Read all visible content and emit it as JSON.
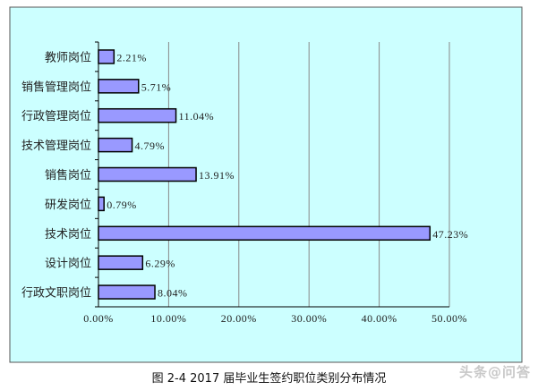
{
  "chart_data": {
    "type": "bar",
    "orientation": "horizontal",
    "categories": [
      "教师岗位",
      "销售管理岗位",
      "行政管理岗位",
      "技术管理岗位",
      "销售岗位",
      "研发岗位",
      "技术岗位",
      "设计岗位",
      "行政文职岗位"
    ],
    "values": [
      2.21,
      5.71,
      11.04,
      4.79,
      13.91,
      0.79,
      47.23,
      6.29,
      8.04
    ],
    "value_labels": [
      "2.21%",
      "5.71%",
      "11.04%",
      "4.79%",
      "13.91%",
      "0.79%",
      "47.23%",
      "6.29%",
      "8.04%"
    ],
    "xlim": [
      0,
      50
    ],
    "xticks": [
      0,
      10,
      20,
      30,
      40,
      50
    ],
    "xtick_labels": [
      "0.00%",
      "10.00%",
      "20.00%",
      "30.00%",
      "40.00%",
      "50.00%"
    ],
    "grid": true,
    "legend": "none",
    "colors": {
      "plot_background": "#ccffff",
      "bar_fill": "#9999ff",
      "bar_stroke": "#000000",
      "grid": "#888888"
    }
  },
  "caption": "图 2-4 2017 届毕业生签约职位类别分布情况",
  "watermark": "头条@问答"
}
